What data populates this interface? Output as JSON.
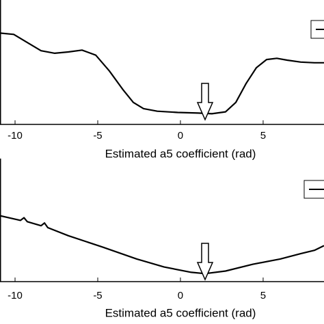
{
  "chart_data": [
    {
      "type": "line",
      "x_label": "Estimated a5 coefficient (rad)",
      "xlim": [
        -10.91,
        8.68
      ],
      "xticks": [
        -10,
        -5,
        0,
        5
      ],
      "ylim": [
        -0.1,
        1
      ],
      "series": [
        {
          "color": "#000000",
          "x": [
            -10.91,
            -10.08,
            -9.26,
            -8.43,
            -7.6,
            -6.78,
            -5.95,
            -5.12,
            -4.3,
            -3.47,
            -2.85,
            -2.23,
            -1.4,
            -0.17,
            1.07,
            1.9,
            2.73,
            3.35,
            3.97,
            4.59,
            5.21,
            5.83,
            6.45,
            7.27,
            8.1,
            8.68
          ],
          "values": [
            0.867,
            0.853,
            0.767,
            0.68,
            0.653,
            0.667,
            0.687,
            0.633,
            0.467,
            0.267,
            0.133,
            0.067,
            0.04,
            0.027,
            0.02,
            0.013,
            0.033,
            0.133,
            0.333,
            0.5,
            0.587,
            0.6,
            0.58,
            0.56,
            0.553,
            0.553
          ]
        }
      ]
    },
    {
      "type": "line",
      "x_label": "Estimated a5 coefficient (rad)",
      "xlim": [
        -10.91,
        8.68
      ],
      "xticks": [
        -10,
        -5,
        0,
        5
      ],
      "ylim": [
        -0.1,
        1
      ],
      "series": [
        {
          "color": "#000000",
          "x": [
            -10.91,
            -9.67,
            -9.46,
            -9.26,
            -8.43,
            -8.22,
            -8.02,
            -6.78,
            -4.71,
            -2.64,
            -0.99,
            0.66,
            1.49,
            2.73,
            4.38,
            6.03,
            7.27,
            8.1,
            8.68
          ],
          "values": [
            0.607,
            0.557,
            0.586,
            0.543,
            0.5,
            0.529,
            0.479,
            0.393,
            0.271,
            0.143,
            0.057,
            0,
            -0.014,
            0.014,
            0.086,
            0.143,
            0.2,
            0.236,
            0.286
          ]
        }
      ]
    }
  ]
}
